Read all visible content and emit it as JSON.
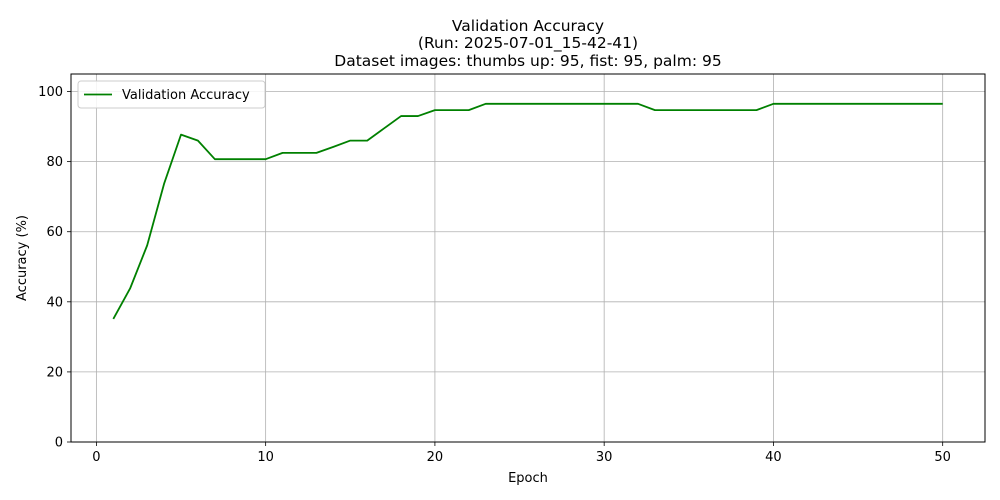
{
  "chart_data": {
    "type": "line",
    "title": "Validation Accuracy",
    "subtitle_lines": [
      "(Run: 2025-07-01_15-42-41)",
      "Dataset images: thumbs up: 95, fist: 95, palm: 95"
    ],
    "xlabel": "Epoch",
    "ylabel": "Accuracy (%)",
    "xlim": [
      -1.5,
      52.5
    ],
    "ylim": [
      0,
      105
    ],
    "xticks": [
      0,
      10,
      20,
      30,
      40,
      50
    ],
    "yticks": [
      0,
      20,
      40,
      60,
      80,
      100
    ],
    "grid": true,
    "legend_position": "top-left",
    "series": [
      {
        "name": "Validation Accuracy",
        "color": "#008000",
        "x": [
          1,
          2,
          3,
          4,
          5,
          6,
          7,
          8,
          9,
          10,
          11,
          12,
          13,
          14,
          15,
          16,
          17,
          18,
          19,
          20,
          21,
          22,
          23,
          24,
          25,
          26,
          27,
          28,
          29,
          30,
          31,
          32,
          33,
          34,
          35,
          36,
          37,
          38,
          39,
          40,
          41,
          42,
          43,
          44,
          45,
          46,
          47,
          48,
          49,
          50
        ],
        "y": [
          35.1,
          43.9,
          56.1,
          73.7,
          87.7,
          86.0,
          80.7,
          80.7,
          80.7,
          80.7,
          82.5,
          82.5,
          82.5,
          84.2,
          86.0,
          86.0,
          89.5,
          93.0,
          93.0,
          94.7,
          94.7,
          94.7,
          96.5,
          96.5,
          96.5,
          96.5,
          96.5,
          96.5,
          96.5,
          96.5,
          96.5,
          96.5,
          94.7,
          94.7,
          94.7,
          94.7,
          94.7,
          94.7,
          94.7,
          96.5,
          96.5,
          96.5,
          96.5,
          96.5,
          96.5,
          96.5,
          96.5,
          96.5,
          96.5,
          96.5
        ]
      }
    ]
  }
}
